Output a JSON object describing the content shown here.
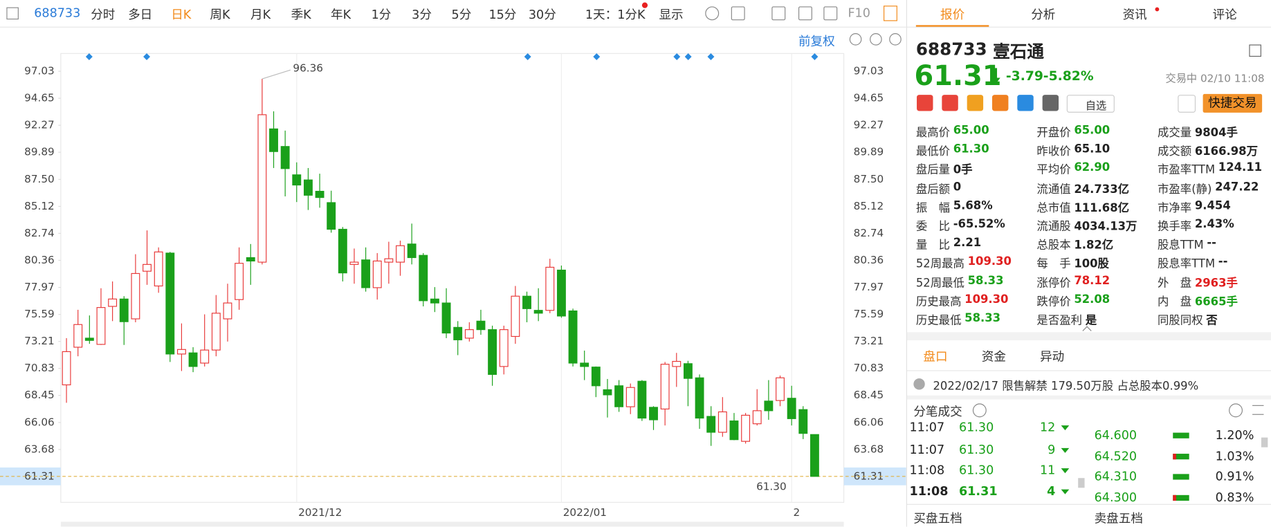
{
  "toolbar": {
    "code": "688733",
    "periods": [
      "分时",
      "多日",
      "日K",
      "周K",
      "月K",
      "季K",
      "年K",
      "1分",
      "3分",
      "5分",
      "15分",
      "30分"
    ],
    "active_period": "日K",
    "multi": "1天：1分K",
    "display": "显示",
    "f10": "F10"
  },
  "chart_data": {
    "type": "candlestick",
    "adjust": "前复权",
    "ylim": [
      59.02,
      98.6
    ],
    "yticks": [
      97.03,
      94.65,
      92.27,
      89.89,
      {
        "value": 87.5,
        "label": "87.50"
      },
      85.12,
      82.74,
      80.36,
      77.97,
      75.59,
      73.21,
      70.83,
      68.45,
      66.06,
      63.68,
      61.31
    ],
    "current_price": 61.31,
    "x_labels": [
      "2021/12",
      "2022/01",
      "2"
    ],
    "max_label": "96.36",
    "min_label": "61.30",
    "up_color": "#e83838",
    "down_color": "#1aa01a",
    "candles": [
      {
        "open": 69.38,
        "close": 72.31,
        "high": 73.5,
        "low": 67.8
      },
      {
        "open": 72.7,
        "close": 74.7,
        "high": 76.0,
        "low": 71.9
      },
      {
        "open": 73.5,
        "close": 73.3,
        "high": 75.5,
        "low": 73.0
      },
      {
        "open": 72.95,
        "close": 76.2,
        "high": 77.9,
        "low": 72.9
      },
      {
        "open": 76.3,
        "close": 76.95,
        "high": 78.5,
        "low": 75.0
      },
      {
        "open": 76.95,
        "close": 74.95,
        "high": 77.2,
        "low": 72.9
      },
      {
        "open": 75.2,
        "close": 79.2,
        "high": 80.9,
        "low": 74.9
      },
      {
        "open": 79.4,
        "close": 80.0,
        "high": 83.0,
        "low": 78.2
      },
      {
        "open": 78.1,
        "close": 81.1,
        "high": 81.5,
        "low": 77.5
      },
      {
        "open": 81.0,
        "close": 72.1,
        "high": 81.1,
        "low": 71.4
      },
      {
        "open": 72.1,
        "close": 72.5,
        "high": 74.8,
        "low": 70.6
      },
      {
        "open": 72.2,
        "close": 71.0,
        "high": 72.7,
        "low": 70.5
      },
      {
        "open": 71.3,
        "close": 72.45,
        "high": 75.6,
        "low": 71.0
      },
      {
        "open": 72.45,
        "close": 75.7,
        "high": 77.3,
        "low": 71.9
      },
      {
        "open": 75.2,
        "close": 76.6,
        "high": 78.3,
        "low": 73.2
      },
      {
        "open": 76.9,
        "close": 80.1,
        "high": 81.5,
        "low": 76.0
      },
      {
        "open": 80.6,
        "close": 80.3,
        "high": 81.8,
        "low": 78.2
      },
      {
        "open": 80.2,
        "close": 93.2,
        "high": 96.36,
        "low": 80.0
      },
      {
        "open": 91.95,
        "close": 89.95,
        "high": 93.5,
        "low": 88.5
      },
      {
        "open": 90.4,
        "close": 88.45,
        "high": 91.8,
        "low": 86.0
      },
      {
        "open": 87.9,
        "close": 87.0,
        "high": 89.0,
        "low": 85.5
      },
      {
        "open": 87.45,
        "close": 86.1,
        "high": 88.5,
        "low": 84.8
      },
      {
        "open": 86.45,
        "close": 85.9,
        "high": 88.0,
        "low": 85.0
      },
      {
        "open": 85.45,
        "close": 83.1,
        "high": 86.5,
        "low": 82.8
      },
      {
        "open": 83.1,
        "close": 79.25,
        "high": 83.3,
        "low": 78.5
      },
      {
        "open": 80.0,
        "close": 80.2,
        "high": 81.4,
        "low": 78.3
      },
      {
        "open": 80.4,
        "close": 77.95,
        "high": 81.5,
        "low": 77.6
      },
      {
        "open": 77.95,
        "close": 80.3,
        "high": 81.0,
        "low": 76.9
      },
      {
        "open": 80.2,
        "close": 80.5,
        "high": 82.0,
        "low": 78.3
      },
      {
        "open": 80.2,
        "close": 81.65,
        "high": 82.1,
        "low": 79.0
      },
      {
        "open": 81.8,
        "close": 80.6,
        "high": 83.6,
        "low": 80.0
      },
      {
        "open": 80.8,
        "close": 76.8,
        "high": 81.0,
        "low": 76.3
      },
      {
        "open": 76.95,
        "close": 76.6,
        "high": 78.0,
        "low": 75.8
      },
      {
        "open": 76.6,
        "close": 73.95,
        "high": 77.9,
        "low": 73.5
      },
      {
        "open": 74.45,
        "close": 73.35,
        "high": 75.0,
        "low": 72.0
      },
      {
        "open": 73.5,
        "close": 74.25,
        "high": 74.9,
        "low": 73.2
      },
      {
        "open": 75.0,
        "close": 74.25,
        "high": 76.0,
        "low": 73.8
      },
      {
        "open": 74.25,
        "close": 70.3,
        "high": 74.6,
        "low": 69.3
      },
      {
        "open": 71.0,
        "close": 74.25,
        "high": 74.6,
        "low": 70.3
      },
      {
        "open": 73.65,
        "close": 77.2,
        "high": 78.1,
        "low": 73.0
      },
      {
        "open": 77.2,
        "close": 76.1,
        "high": 77.6,
        "low": 74.9
      },
      {
        "open": 75.95,
        "close": 75.7,
        "high": 77.9,
        "low": 75.0
      },
      {
        "open": 75.95,
        "close": 79.75,
        "high": 80.5,
        "low": 75.7
      },
      {
        "open": 79.5,
        "close": 75.45,
        "high": 79.9,
        "low": 75.3
      },
      {
        "open": 75.9,
        "close": 71.3,
        "high": 76.1,
        "low": 71.0
      },
      {
        "open": 71.3,
        "close": 71.0,
        "high": 72.4,
        "low": 69.8
      },
      {
        "open": 70.95,
        "close": 69.3,
        "high": 71.0,
        "low": 68.3
      },
      {
        "open": 68.95,
        "close": 68.5,
        "high": 69.9,
        "low": 66.5
      },
      {
        "open": 69.3,
        "close": 67.45,
        "high": 69.8,
        "low": 67.0
      },
      {
        "open": 67.45,
        "close": 69.15,
        "high": 69.5,
        "low": 66.8
      },
      {
        "open": 69.7,
        "close": 66.45,
        "high": 69.8,
        "low": 66.2
      },
      {
        "open": 67.4,
        "close": 66.3,
        "high": 67.5,
        "low": 65.4
      },
      {
        "open": 67.25,
        "close": 71.2,
        "high": 71.4,
        "low": 65.8
      },
      {
        "open": 71.0,
        "close": 71.45,
        "high": 72.2,
        "low": 69.2
      },
      {
        "open": 71.25,
        "close": 69.95,
        "high": 71.5,
        "low": 67.5
      },
      {
        "open": 70.0,
        "close": 66.45,
        "high": 70.3,
        "low": 65.5
      },
      {
        "open": 66.6,
        "close": 65.2,
        "high": 67.5,
        "low": 64.0
      },
      {
        "open": 65.2,
        "close": 67.0,
        "high": 68.3,
        "low": 64.8
      },
      {
        "open": 66.2,
        "close": 64.55,
        "high": 66.9,
        "low": 64.5
      },
      {
        "open": 64.4,
        "close": 66.7,
        "high": 66.9,
        "low": 64.2
      },
      {
        "open": 65.95,
        "close": 67.1,
        "high": 69.0,
        "low": 65.8
      },
      {
        "open": 67.95,
        "close": 67.1,
        "high": 69.8,
        "low": 66.3
      },
      {
        "open": 68.0,
        "close": 70.0,
        "high": 70.2,
        "low": 67.5
      },
      {
        "open": 68.2,
        "close": 66.4,
        "high": 69.3,
        "low": 65.8
      },
      {
        "open": 67.2,
        "close": 65.1,
        "high": 67.5,
        "low": 64.6
      },
      {
        "open": 65.0,
        "close": 61.31,
        "high": 65.0,
        "low": 61.3
      }
    ]
  },
  "panel": {
    "tabs": [
      "报价",
      "分析",
      "资讯",
      "评论"
    ],
    "code": "688733",
    "name": "壹石通",
    "price": "61.31",
    "change": "-3.79",
    "pct": "-5.82%",
    "status": "交易中 02/10 11:08",
    "watch": "自选",
    "trade": "快捷交易",
    "stats": [
      [
        [
          "最高价",
          "65.00",
          "#1aa01a"
        ],
        [
          "最低价",
          "61.30",
          "#1aa01a"
        ],
        [
          "盘后量",
          "0手",
          "#222"
        ],
        [
          "盘后额",
          "0",
          "#222"
        ],
        [
          "振　幅",
          "5.68%",
          "#222"
        ],
        [
          "委　比",
          "-65.52%",
          "#222"
        ],
        [
          "量　比",
          "2.21",
          "#222"
        ],
        [
          "52周最高",
          "109.30",
          "#e02020"
        ],
        [
          "52周最低",
          "58.33",
          "#1aa01a"
        ],
        [
          "历史最高",
          "109.30",
          "#e02020"
        ],
        [
          "历史最低",
          "58.33",
          "#1aa01a"
        ]
      ],
      [
        [
          "开盘价",
          "65.00",
          "#1aa01a"
        ],
        [
          "昨收价",
          "65.10",
          "#222"
        ],
        [
          "平均价",
          "62.90",
          "#1aa01a"
        ],
        [
          "流通值",
          "24.733亿",
          "#222"
        ],
        [
          "总市值",
          "111.68亿",
          "#222"
        ],
        [
          "流通股",
          "4034.13万",
          "#222"
        ],
        [
          "总股本",
          "1.82亿",
          "#222"
        ],
        [
          "每　手",
          "100股",
          "#222"
        ],
        [
          "涨停价",
          "78.12",
          "#e02020"
        ],
        [
          "跌停价",
          "52.08",
          "#1aa01a"
        ],
        [
          "是否盈利",
          "是",
          "#222"
        ]
      ],
      [
        [
          "成交量",
          "9804手",
          "#222"
        ],
        [
          "成交额",
          "6166.98万",
          "#222"
        ],
        [
          "市盈率TTM",
          "124.11",
          "#222"
        ],
        [
          "市盈率(静)",
          "247.22",
          "#222"
        ],
        [
          "市净率",
          "9.454",
          "#222"
        ],
        [
          "换手率",
          "2.43%",
          "#222"
        ],
        [
          "股息TTM",
          "--",
          "#222"
        ],
        [
          "股息率TTM",
          "--",
          "#222"
        ],
        [
          "外　盘",
          "2963手",
          "#e02020"
        ],
        [
          "内　盘",
          "6665手",
          "#1aa01a"
        ],
        [
          "同股同权",
          "否",
          "#222"
        ]
      ]
    ],
    "subtabs": [
      "盘口",
      "资金",
      "异动"
    ],
    "notice": "2022/02/17  限售解禁 179.50万股 占总股本0.99%",
    "trades_title": "分笔成交",
    "trades": [
      [
        "11:07",
        "61.30",
        "12"
      ],
      [
        "11:07",
        "61.30",
        "9"
      ],
      [
        "11:08",
        "61.30",
        "11"
      ],
      [
        "11:08",
        "61.31",
        "4"
      ]
    ],
    "depth": [
      [
        "64.600",
        "1.20%"
      ],
      [
        "64.520",
        "1.03%"
      ],
      [
        "64.310",
        "0.91%"
      ],
      [
        "64.300",
        "0.83%"
      ]
    ],
    "buy_title": "买盘五档",
    "sell_title": "卖盘五档"
  }
}
